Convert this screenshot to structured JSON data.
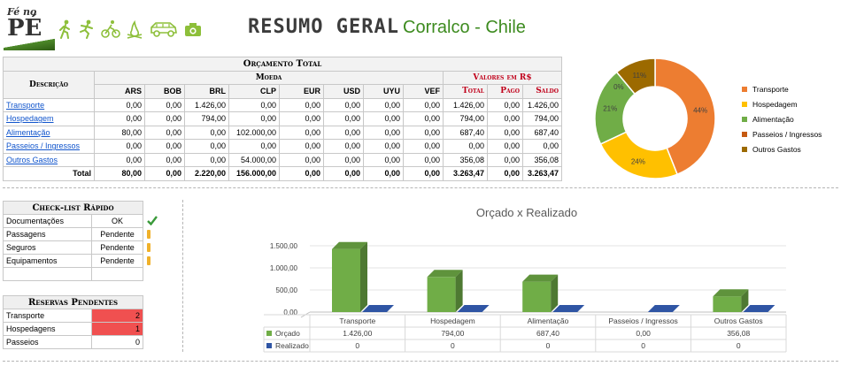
{
  "header": {
    "logo_text_top": "Fé no",
    "logo_text_main": "PÉ",
    "icons": [
      "hiking-icon",
      "running-icon",
      "cycling-icon",
      "campfire-icon",
      "car-icon",
      "camera-icon"
    ],
    "title": "RESUMO GERAL",
    "subtitle": "Corralco - Chile"
  },
  "budget": {
    "title": "Orçamento Total",
    "desc_header": "Descrição",
    "moeda_header": "Moeda",
    "valores_header": "Valores em R$",
    "currencies": [
      "ARS",
      "BOB",
      "BRL",
      "CLP",
      "EUR",
      "USD",
      "UYU",
      "VEF"
    ],
    "value_cols": [
      "Total",
      "Pago",
      "Saldo"
    ],
    "rows": [
      {
        "label": "Transporte",
        "cells": [
          "0,00",
          "0,00",
          "1.426,00",
          "0,00",
          "0,00",
          "0,00",
          "0,00",
          "0,00",
          "1.426,00",
          "0,00",
          "1.426,00"
        ]
      },
      {
        "label": "Hospedagem",
        "cells": [
          "0,00",
          "0,00",
          "794,00",
          "0,00",
          "0,00",
          "0,00",
          "0,00",
          "0,00",
          "794,00",
          "0,00",
          "794,00"
        ]
      },
      {
        "label": "Alimentação",
        "cells": [
          "80,00",
          "0,00",
          "0,00",
          "102.000,00",
          "0,00",
          "0,00",
          "0,00",
          "0,00",
          "687,40",
          "0,00",
          "687,40"
        ]
      },
      {
        "label": "Passeios / Ingressos",
        "cells": [
          "0,00",
          "0,00",
          "0,00",
          "0,00",
          "0,00",
          "0,00",
          "0,00",
          "0,00",
          "0,00",
          "0,00",
          "0,00"
        ]
      },
      {
        "label": "Outros Gastos",
        "cells": [
          "0,00",
          "0,00",
          "0,00",
          "54.000,00",
          "0,00",
          "0,00",
          "0,00",
          "0,00",
          "356,08",
          "0,00",
          "356,08"
        ]
      }
    ],
    "total_label": "Total",
    "totals": [
      "80,00",
      "0,00",
      "2.220,00",
      "156.000,00",
      "0,00",
      "0,00",
      "0,00",
      "0,00",
      "3.263,47",
      "0,00",
      "3.263,47"
    ]
  },
  "donut_chart": {
    "type": "pie",
    "categories": [
      "Transporte",
      "Hospedagem",
      "Alimentação",
      "Passeios / Ingressos",
      "Outros Gastos"
    ],
    "values": [
      44,
      24,
      21,
      0,
      11
    ],
    "labels": [
      "44%",
      "24%",
      "21%",
      "0%",
      "11%"
    ],
    "colors": [
      "#ed7d31",
      "#ffc000",
      "#70ad47",
      "#c55a11",
      "#9c6a00"
    ],
    "legend_position": "right"
  },
  "checklist": {
    "title": "Check-list Rápido",
    "items": [
      {
        "label": "Documentações",
        "status": "OK",
        "icon": "check-icon"
      },
      {
        "label": "Passagens",
        "status": "Pendente",
        "icon": "warning-icon"
      },
      {
        "label": "Seguros",
        "status": "Pendente",
        "icon": "warning-icon"
      },
      {
        "label": "Equipamentos",
        "status": "Pendente",
        "icon": "warning-icon"
      }
    ]
  },
  "reservas": {
    "title": "Reservas Pendentes",
    "items": [
      {
        "label": "Transporte",
        "count": "2"
      },
      {
        "label": "Hospedagens",
        "count": "1"
      },
      {
        "label": "Passeios",
        "count": "0"
      }
    ]
  },
  "chart_data": {
    "type": "bar",
    "title": "Orçado x Realizado",
    "categories": [
      "Transporte",
      "Hospedagem",
      "Alimentação",
      "Passeios / Ingressos",
      "Outros Gastos"
    ],
    "series": [
      {
        "name": "Orçado",
        "values": [
          1426.0,
          794.0,
          687.4,
          0.0,
          356.08
        ],
        "labels": [
          "1.426,00",
          "794,00",
          "687,40",
          "0,00",
          "356,08"
        ],
        "color": "#70ad47"
      },
      {
        "name": "Realizado",
        "values": [
          0,
          0,
          0,
          0,
          0
        ],
        "labels": [
          "0",
          "0",
          "0",
          "0",
          "0"
        ],
        "color": "#2f55a4"
      }
    ],
    "yticks": [
      "0,00",
      "500,00",
      "1.000,00",
      "1.500,00"
    ],
    "ylim": [
      0,
      1500
    ],
    "legend": "data-table-below"
  }
}
